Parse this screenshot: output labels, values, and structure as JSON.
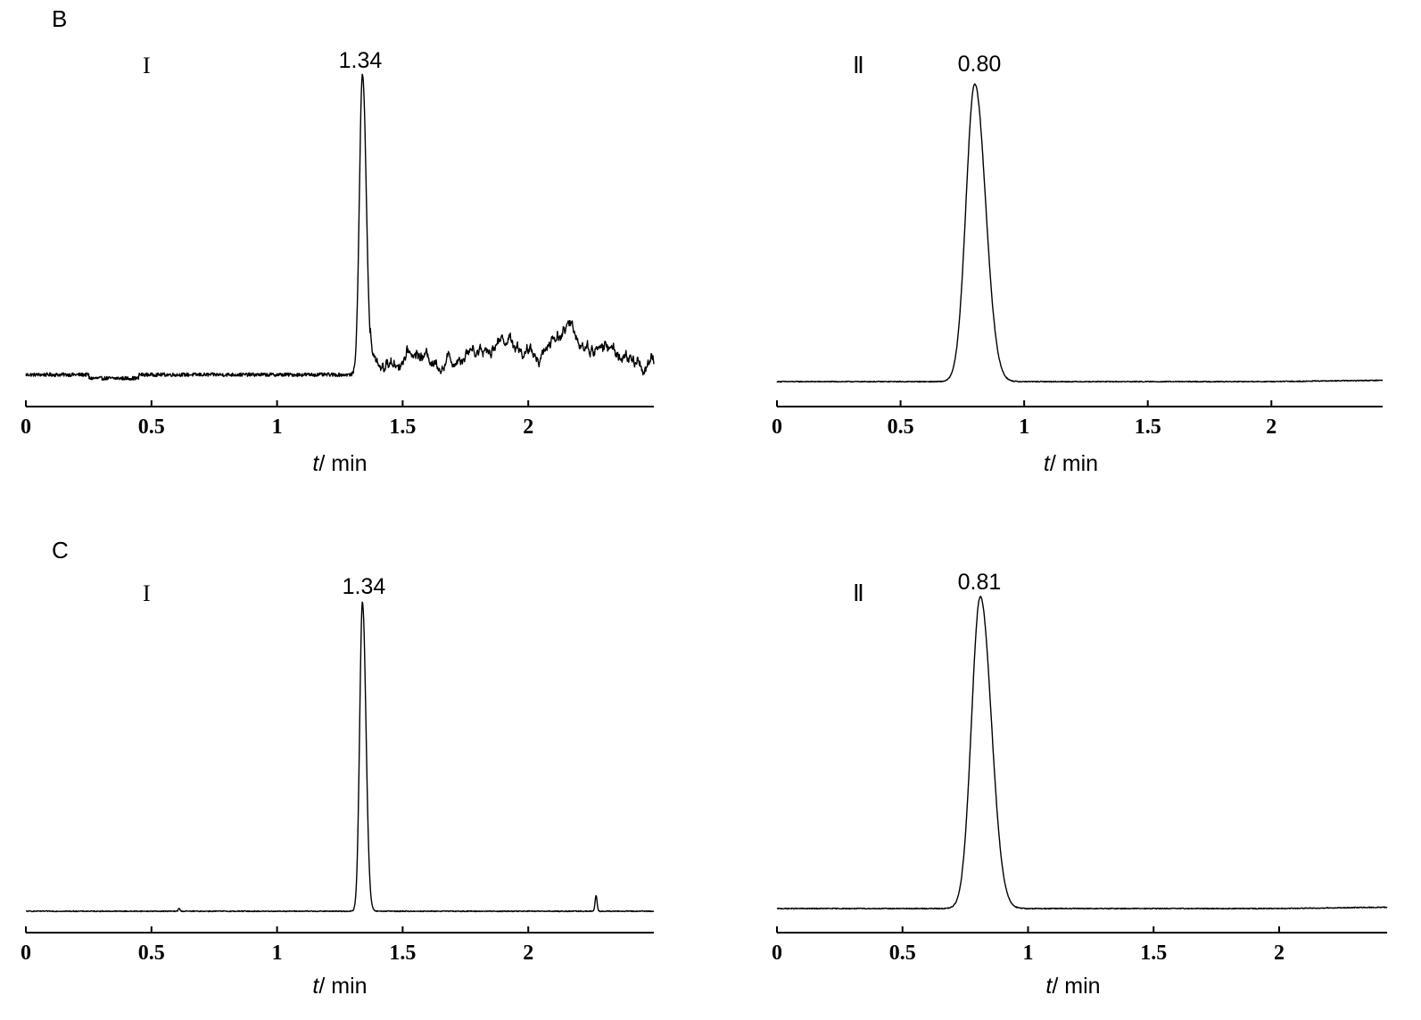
{
  "chart_data": [
    {
      "type": "line",
      "panel": "B",
      "trace_label": "I",
      "peak": {
        "x": 1.34,
        "label": "1.34",
        "height": 1.0,
        "width": 0.012
      },
      "x_ticks": [
        "0",
        "0.5",
        "1",
        "1.5",
        "2"
      ],
      "x_tick_values": [
        0,
        0.5,
        1,
        1.5,
        2
      ],
      "xlim": [
        0,
        2.5
      ],
      "xlabel_var": "t",
      "xlabel_unit": "/ min",
      "baseline": 0.02,
      "noise": 0.006,
      "humps": [
        {
          "x": 1.55,
          "h": 0.035,
          "w": 0.06
        },
        {
          "x": 1.78,
          "h": 0.06,
          "w": 0.06
        },
        {
          "x": 1.92,
          "h": 0.09,
          "w": 0.05
        },
        {
          "x": 2.15,
          "h": 0.12,
          "w": 0.07
        },
        {
          "x": 2.32,
          "h": 0.05,
          "w": 0.05
        }
      ],
      "hump_noise": 0.03
    },
    {
      "type": "line",
      "panel": "",
      "trace_label": "Ⅱ",
      "peak": {
        "x": 0.8,
        "label": "0.80",
        "height": 1.0,
        "width": 0.035
      },
      "x_ticks": [
        "0",
        "0.5",
        "1",
        "1.5",
        "2"
      ],
      "x_tick_values": [
        0,
        0.5,
        1,
        1.5,
        2
      ],
      "xlim": [
        0,
        2.45
      ],
      "xlabel_var": "t",
      "xlabel_unit": "/ min",
      "baseline": 0.0,
      "noise": 0.0015,
      "humps": [],
      "hump_noise": 0
    },
    {
      "type": "line",
      "panel": "C",
      "trace_label": "I",
      "peak": {
        "x": 1.34,
        "label": "1.34",
        "height": 1.0,
        "width": 0.011
      },
      "x_ticks": [
        "0",
        "0.5",
        "1",
        "1.5",
        "2"
      ],
      "x_tick_values": [
        0,
        0.5,
        1,
        1.5,
        2
      ],
      "xlim": [
        0,
        2.5
      ],
      "xlabel_var": "t",
      "xlabel_unit": "/ min",
      "baseline": 0.0,
      "noise": 0.0015,
      "humps": [
        {
          "x": 2.27,
          "h": 0.05,
          "w": 0.004
        },
        {
          "x": 0.61,
          "h": 0.01,
          "w": 0.003
        }
      ],
      "hump_noise": 0.004
    },
    {
      "type": "line",
      "panel": "",
      "trace_label": "Ⅱ",
      "peak": {
        "x": 0.81,
        "label": "0.81",
        "height": 1.0,
        "width": 0.035
      },
      "x_ticks": [
        "0",
        "0.5",
        "1",
        "1.5",
        "2"
      ],
      "x_tick_values": [
        0,
        0.5,
        1,
        1.5,
        2
      ],
      "xlim": [
        0,
        2.43
      ],
      "xlabel_var": "t",
      "xlabel_unit": "/ min",
      "baseline": 0.0,
      "noise": 0.0015,
      "humps": [],
      "hump_noise": 0
    }
  ]
}
